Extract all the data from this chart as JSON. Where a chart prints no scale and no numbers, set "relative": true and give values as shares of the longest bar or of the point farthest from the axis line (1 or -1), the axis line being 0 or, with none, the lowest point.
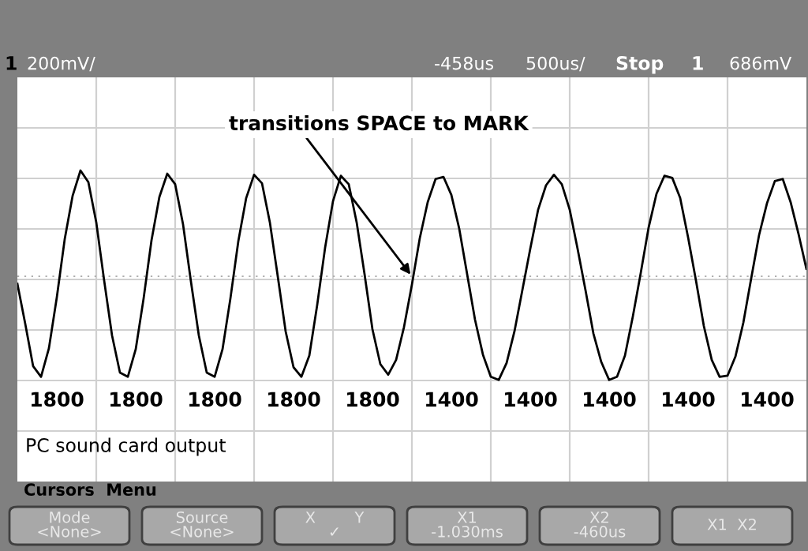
{
  "chart_data": {
    "type": "line",
    "relative": true,
    "grid": true,
    "color": "#000000",
    "ref_lines": [
      {
        "axis": "y",
        "value": 0,
        "color": "#b0b0b0",
        "line_style": "dotted"
      }
    ],
    "categories": [
      null,
      null,
      null,
      null,
      null,
      null,
      null,
      null,
      null,
      null,
      null,
      null,
      null,
      null,
      null,
      null,
      null,
      null,
      null,
      null,
      null,
      null,
      null,
      null,
      null,
      null,
      null,
      null,
      null,
      null,
      null,
      null,
      null,
      null,
      null,
      null,
      null,
      null,
      null,
      null,
      null,
      null,
      null,
      null,
      null,
      null,
      null,
      null,
      null,
      null,
      null,
      null,
      null,
      null,
      null,
      null,
      null,
      null,
      null,
      null,
      null,
      null,
      null,
      null,
      null,
      null,
      null,
      null,
      null,
      null,
      null,
      null,
      null,
      null,
      null,
      null,
      null,
      null,
      null,
      null,
      null,
      null,
      null,
      null,
      null,
      null,
      null,
      null,
      null,
      null,
      null,
      null,
      null,
      null,
      null,
      null,
      null,
      null,
      null,
      null,
      null
    ],
    "values": [
      -0.07,
      -0.45,
      -0.85,
      -0.95,
      -0.68,
      -0.2,
      0.35,
      0.76,
      1.0,
      0.89,
      0.51,
      -0.04,
      -0.56,
      -0.91,
      -0.95,
      -0.69,
      -0.21,
      0.34,
      0.75,
      0.97,
      0.87,
      0.49,
      -0.05,
      -0.56,
      -0.91,
      -0.95,
      -0.69,
      -0.21,
      0.33,
      0.74,
      0.96,
      0.88,
      0.51,
      0.0,
      -0.52,
      -0.86,
      -0.95,
      -0.75,
      -0.27,
      0.27,
      0.71,
      0.95,
      0.87,
      0.51,
      0.02,
      -0.5,
      -0.83,
      -0.93,
      -0.79,
      -0.48,
      -0.08,
      0.36,
      0.7,
      0.92,
      0.94,
      0.77,
      0.45,
      0.02,
      -0.41,
      -0.74,
      -0.95,
      -0.98,
      -0.82,
      -0.52,
      -0.13,
      0.26,
      0.63,
      0.86,
      0.96,
      0.87,
      0.63,
      0.26,
      -0.13,
      -0.54,
      -0.81,
      -0.98,
      -0.95,
      -0.75,
      -0.38,
      0.03,
      0.46,
      0.78,
      0.95,
      0.93,
      0.74,
      0.37,
      -0.04,
      -0.47,
      -0.79,
      -0.95,
      -0.94,
      -0.76,
      -0.44,
      -0.02,
      0.39,
      0.69,
      0.9,
      0.92,
      0.7,
      0.4,
      0.07
    ],
    "annotations": [
      "transitions SPACE to MARK",
      "1800",
      "1800",
      "1800",
      "1800",
      "1800",
      "1400",
      "1400",
      "1400",
      "1400",
      "1400",
      "PC sound card output",
      "1",
      "200mV/",
      "-458us",
      "500us/",
      "Stop",
      "1",
      "686mV",
      "Cursors  Menu",
      "Mode\n<None>",
      "Source\n<None>",
      "X        Y\n✓",
      "X1\n-1.030ms",
      "X2\n-460us",
      "X1  X2"
    ]
  }
}
